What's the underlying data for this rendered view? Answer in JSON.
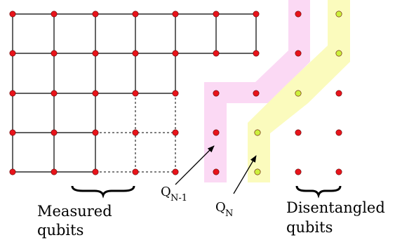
{
  "labels": {
    "measured_line1": "Measured",
    "measured_line2": "qubits",
    "disentangled_line1": "Disentangled",
    "disentangled_line2": "qubits",
    "q_n_minus_1_main": "Q",
    "q_n_minus_1_sub": "N-1",
    "q_n_main": "Q",
    "q_n_sub": "N"
  },
  "colors": {
    "red_node": "#e8141b",
    "green_node": "#ccf03c",
    "pink_band": "#fbd9f4",
    "yellow_band": "#fbfbbd",
    "line": "#000000"
  }
}
